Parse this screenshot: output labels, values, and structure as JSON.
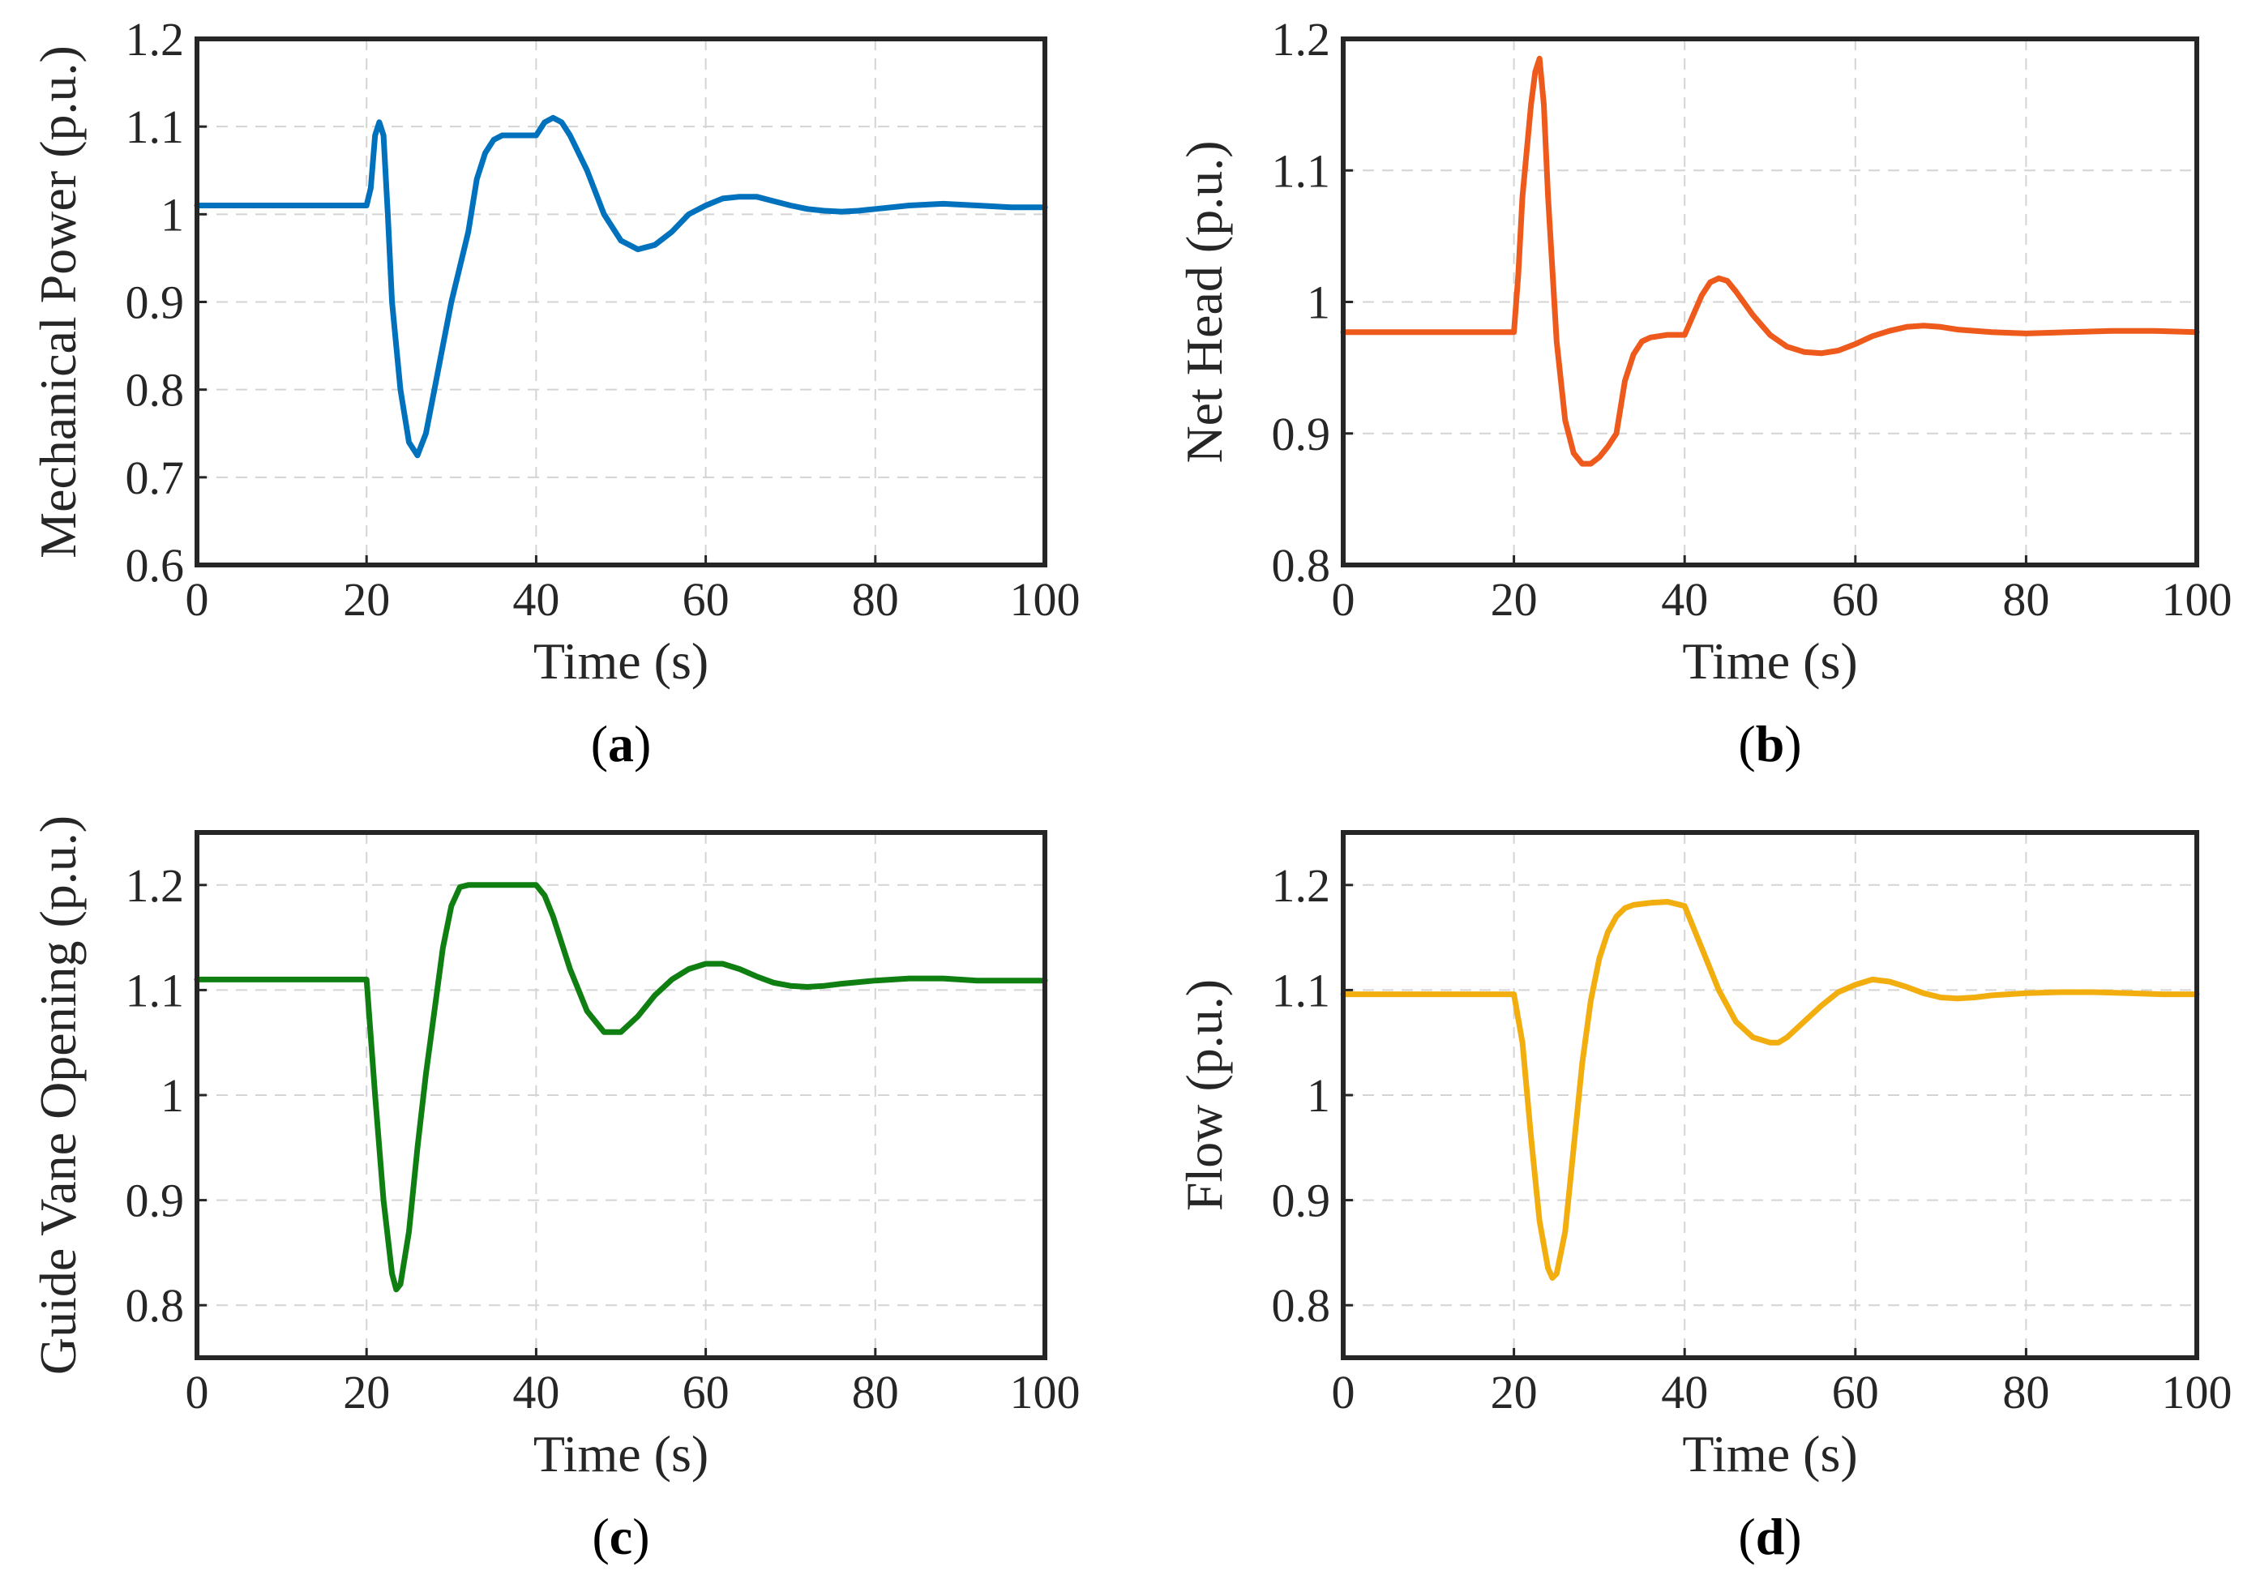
{
  "chart_data": [
    {
      "id": "a",
      "type": "line",
      "caption_letter": "a",
      "xlabel": "Time (s)",
      "ylabel": "Mechanical Power (p.u.)",
      "xlim": [
        0,
        100
      ],
      "ylim": [
        0.6,
        1.2
      ],
      "xticks": [
        0,
        20,
        40,
        60,
        80,
        100
      ],
      "yticks": [
        0.6,
        0.7,
        0.8,
        0.9,
        1,
        1.1,
        1.2
      ],
      "ytick_labels": [
        "0.6",
        "0.7",
        "0.8",
        "0.9",
        "1",
        "1.1",
        "1.2"
      ],
      "grid": true,
      "color": "#0072BD",
      "series": [
        {
          "name": "Mechanical Power",
          "x": [
            0,
            20,
            20.5,
            21,
            21.5,
            22,
            22.5,
            23,
            24,
            25,
            26,
            27,
            28,
            29,
            30,
            31,
            32,
            33,
            34,
            35,
            36,
            38,
            40,
            41,
            42,
            43,
            44,
            46,
            48,
            50,
            52,
            54,
            56,
            58,
            60,
            62,
            64,
            66,
            68,
            70,
            72,
            74,
            76,
            78,
            80,
            84,
            88,
            92,
            96,
            100
          ],
          "y": [
            1.01,
            1.01,
            1.03,
            1.09,
            1.105,
            1.09,
            1.0,
            0.9,
            0.8,
            0.74,
            0.725,
            0.75,
            0.8,
            0.85,
            0.9,
            0.94,
            0.98,
            1.04,
            1.07,
            1.085,
            1.09,
            1.09,
            1.09,
            1.105,
            1.11,
            1.105,
            1.09,
            1.05,
            1.0,
            0.97,
            0.96,
            0.965,
            0.98,
            1.0,
            1.01,
            1.018,
            1.02,
            1.02,
            1.015,
            1.01,
            1.006,
            1.004,
            1.003,
            1.004,
            1.006,
            1.01,
            1.012,
            1.01,
            1.008,
            1.008
          ]
        }
      ]
    },
    {
      "id": "b",
      "type": "line",
      "caption_letter": "b",
      "xlabel": "Time (s)",
      "ylabel": "Net Head (p.u.)",
      "xlim": [
        0,
        100
      ],
      "ylim": [
        0.8,
        1.2
      ],
      "xticks": [
        0,
        20,
        40,
        60,
        80,
        100
      ],
      "yticks": [
        0.8,
        0.9,
        1,
        1.1,
        1.2
      ],
      "ytick_labels": [
        "0.8",
        "0.9",
        "1",
        "1.1",
        "1.2"
      ],
      "grid": true,
      "color": "#EE5A1C",
      "series": [
        {
          "name": "Net Head",
          "x": [
            0,
            20,
            20.5,
            21,
            22,
            22.5,
            23,
            23.5,
            24,
            25,
            26,
            27,
            28,
            29,
            30,
            31,
            32,
            33,
            34,
            35,
            36,
            38,
            40,
            41,
            42,
            43,
            44,
            45,
            46,
            48,
            50,
            52,
            54,
            56,
            58,
            60,
            62,
            64,
            66,
            68,
            70,
            72,
            76,
            80,
            85,
            90,
            95,
            100
          ],
          "y": [
            0.977,
            0.977,
            1.02,
            1.08,
            1.15,
            1.175,
            1.185,
            1.15,
            1.08,
            0.97,
            0.91,
            0.885,
            0.877,
            0.877,
            0.882,
            0.89,
            0.9,
            0.94,
            0.96,
            0.97,
            0.973,
            0.975,
            0.975,
            0.99,
            1.005,
            1.015,
            1.018,
            1.016,
            1.008,
            0.99,
            0.975,
            0.966,
            0.962,
            0.961,
            0.963,
            0.968,
            0.974,
            0.978,
            0.981,
            0.982,
            0.981,
            0.979,
            0.977,
            0.976,
            0.977,
            0.978,
            0.978,
            0.977
          ]
        }
      ]
    },
    {
      "id": "c",
      "type": "line",
      "caption_letter": "c",
      "xlabel": "Time (s)",
      "ylabel": "Guide Vane Opening (p.u.)",
      "xlim": [
        0,
        100
      ],
      "ylim": [
        0.75,
        1.25
      ],
      "xticks": [
        0,
        20,
        40,
        60,
        80,
        100
      ],
      "yticks": [
        0.8,
        0.9,
        1,
        1.1,
        1.2
      ],
      "ytick_labels": [
        "0.8",
        "0.9",
        "1",
        "1.1",
        "1.2"
      ],
      "grid": true,
      "color": "#0F7F12",
      "series": [
        {
          "name": "Guide Vane Opening",
          "x": [
            0,
            20,
            21,
            22,
            23,
            23.5,
            24,
            25,
            26,
            27,
            28,
            29,
            30,
            31,
            32,
            34,
            36,
            38,
            40,
            41,
            42,
            44,
            46,
            48,
            50,
            52,
            54,
            56,
            58,
            60,
            62,
            64,
            66,
            68,
            70,
            72,
            74,
            76,
            80,
            84,
            88,
            92,
            96,
            100
          ],
          "y": [
            1.11,
            1.11,
            1.0,
            0.9,
            0.83,
            0.815,
            0.82,
            0.87,
            0.95,
            1.02,
            1.08,
            1.14,
            1.18,
            1.198,
            1.2,
            1.2,
            1.2,
            1.2,
            1.2,
            1.19,
            1.17,
            1.12,
            1.08,
            1.06,
            1.06,
            1.075,
            1.095,
            1.11,
            1.12,
            1.125,
            1.125,
            1.12,
            1.113,
            1.107,
            1.104,
            1.103,
            1.104,
            1.106,
            1.109,
            1.111,
            1.111,
            1.109,
            1.109,
            1.109
          ]
        }
      ]
    },
    {
      "id": "d",
      "type": "line",
      "caption_letter": "d",
      "xlabel": "Time (s)",
      "ylabel": "Flow (p.u.)",
      "xlim": [
        0,
        100
      ],
      "ylim": [
        0.75,
        1.25
      ],
      "xticks": [
        0,
        20,
        40,
        60,
        80,
        100
      ],
      "yticks": [
        0.8,
        0.9,
        1,
        1.1,
        1.2
      ],
      "ytick_labels": [
        "0.8",
        "0.9",
        "1",
        "1.1",
        "1.2"
      ],
      "grid": true,
      "color": "#F2AE0F",
      "series": [
        {
          "name": "Flow",
          "x": [
            0,
            20,
            21,
            22,
            23,
            24,
            24.5,
            25,
            26,
            27,
            28,
            29,
            30,
            31,
            32,
            33,
            34,
            36,
            38,
            40,
            41,
            42,
            44,
            46,
            48,
            50,
            51,
            52,
            54,
            56,
            58,
            60,
            62,
            64,
            66,
            68,
            70,
            72,
            74,
            76,
            80,
            84,
            88,
            92,
            96,
            100
          ],
          "y": [
            1.096,
            1.096,
            1.05,
            0.96,
            0.88,
            0.835,
            0.826,
            0.83,
            0.87,
            0.95,
            1.03,
            1.09,
            1.13,
            1.155,
            1.17,
            1.178,
            1.181,
            1.183,
            1.184,
            1.18,
            1.16,
            1.14,
            1.1,
            1.07,
            1.055,
            1.05,
            1.05,
            1.055,
            1.07,
            1.085,
            1.098,
            1.105,
            1.11,
            1.108,
            1.103,
            1.097,
            1.093,
            1.092,
            1.093,
            1.095,
            1.097,
            1.098,
            1.098,
            1.097,
            1.096,
            1.096
          ]
        }
      ]
    }
  ]
}
